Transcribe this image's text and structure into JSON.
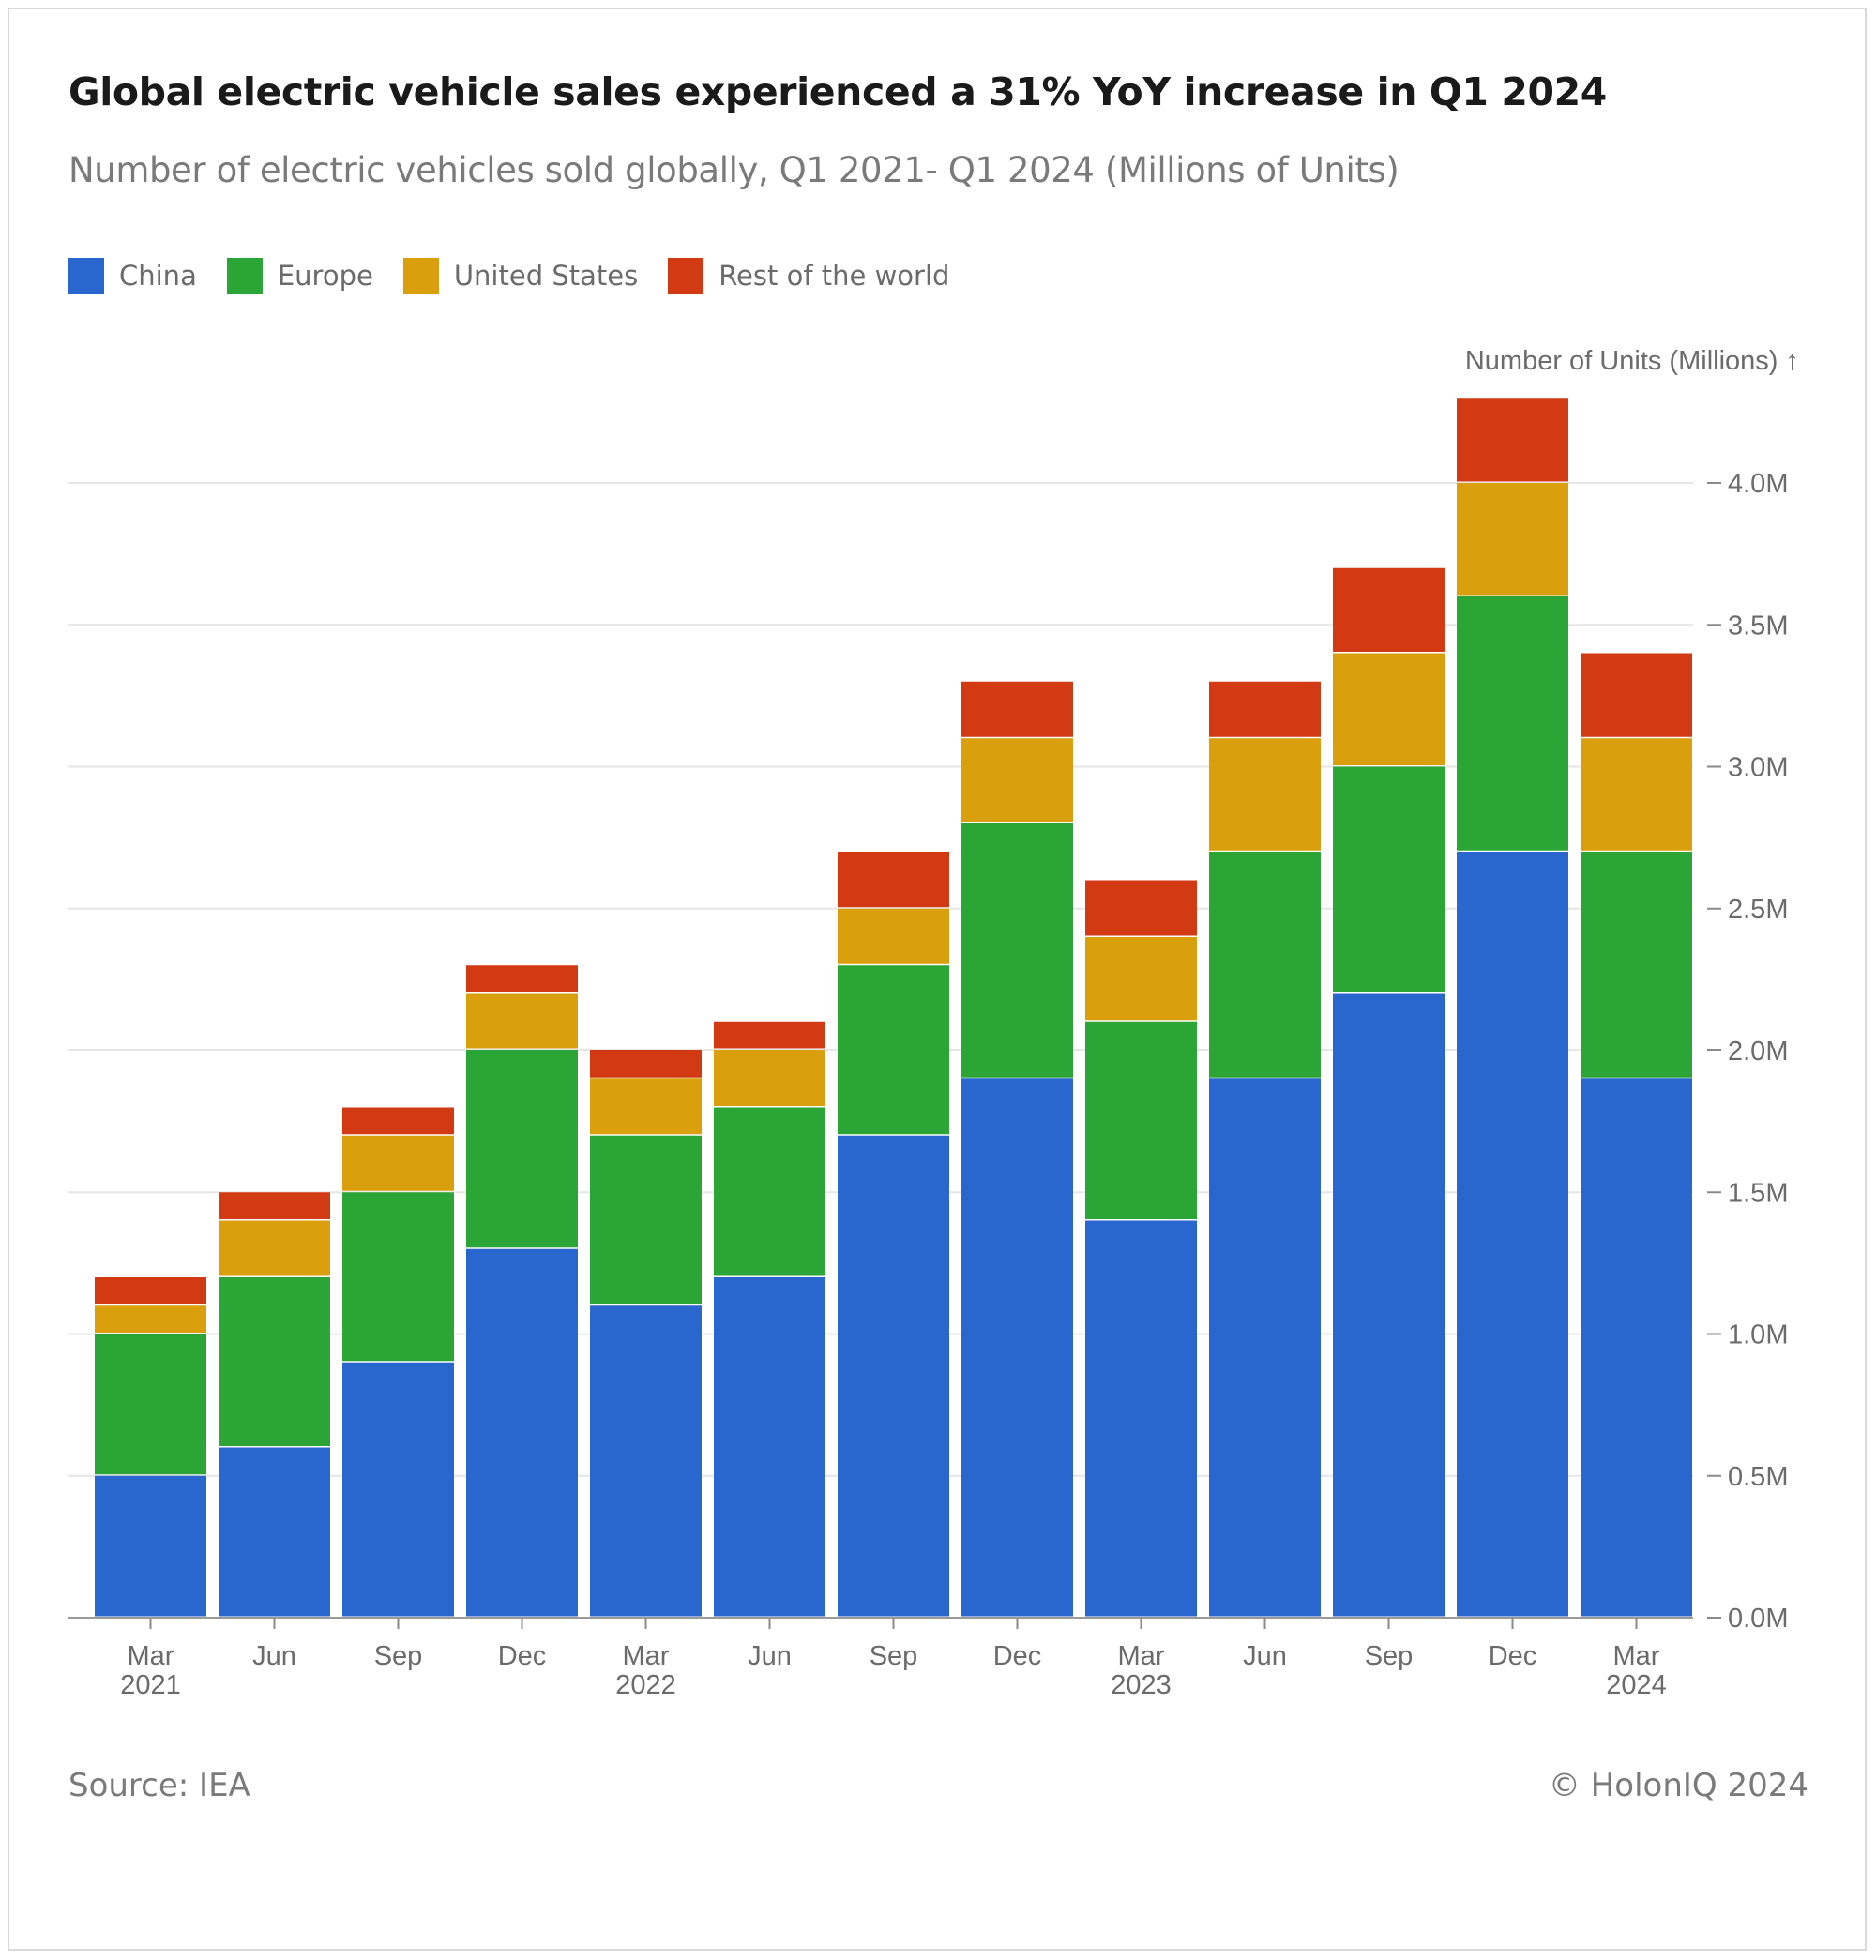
{
  "header": {
    "title": "Global electric vehicle sales experienced a 31% YoY increase in Q1 2024",
    "subtitle": "Number of electric vehicles sold globally, Q1 2021- Q1 2024 (Millions of Units)"
  },
  "footer": {
    "source": "Source: IEA",
    "copyright": "© HolonIQ 2024"
  },
  "colors": {
    "China": "#2966ce",
    "Europe": "#2ba535",
    "United States": "#d99f0c",
    "Rest of the world": "#d13a13",
    "grid": "#e6e6e6",
    "axis_text": "#6b6b6b"
  },
  "chart_data": {
    "type": "bar",
    "stacked": true,
    "x": [
      "Mar 2021",
      "Jun 2021",
      "Sep 2021",
      "Dec 2021",
      "Mar 2022",
      "Jun 2022",
      "Sep 2022",
      "Dec 2022",
      "Mar 2023",
      "Jun 2023",
      "Sep 2023",
      "Dec 2023",
      "Mar 2024"
    ],
    "tick_labels": [
      [
        "Mar",
        "2021"
      ],
      [
        "Jun"
      ],
      [
        "Sep"
      ],
      [
        "Dec"
      ],
      [
        "Mar",
        "2022"
      ],
      [
        "Jun"
      ],
      [
        "Sep"
      ],
      [
        "Dec"
      ],
      [
        "Mar",
        "2023"
      ],
      [
        "Jun"
      ],
      [
        "Sep"
      ],
      [
        "Dec"
      ],
      [
        "Mar",
        "2024"
      ]
    ],
    "series": [
      {
        "name": "China",
        "values": [
          0.5,
          0.6,
          0.9,
          1.3,
          1.1,
          1.2,
          1.7,
          1.9,
          1.4,
          1.9,
          2.2,
          2.7,
          1.9
        ]
      },
      {
        "name": "Europe",
        "values": [
          0.5,
          0.6,
          0.6,
          0.7,
          0.6,
          0.6,
          0.6,
          0.9,
          0.7,
          0.8,
          0.8,
          0.9,
          0.8
        ]
      },
      {
        "name": "United States",
        "values": [
          0.1,
          0.2,
          0.2,
          0.2,
          0.2,
          0.2,
          0.2,
          0.3,
          0.3,
          0.4,
          0.4,
          0.4,
          0.4
        ]
      },
      {
        "name": "Rest of the world",
        "values": [
          0.1,
          0.1,
          0.1,
          0.1,
          0.1,
          0.1,
          0.2,
          0.2,
          0.2,
          0.2,
          0.3,
          0.3,
          0.3
        ]
      }
    ],
    "ylabel": "Number of Units (Millions) ↑",
    "ylim": [
      0,
      4.3
    ],
    "yticks": [
      0,
      0.5,
      1.0,
      1.5,
      2.0,
      2.5,
      3.0,
      3.5,
      4.0
    ],
    "ytick_labels": [
      "0.0M",
      "0.5M",
      "1.0M",
      "1.5M",
      "2.0M",
      "2.5M",
      "3.0M",
      "3.5M",
      "4.0M"
    ],
    "y_axis_side": "right",
    "grid": true,
    "legend_position": "top-left"
  }
}
